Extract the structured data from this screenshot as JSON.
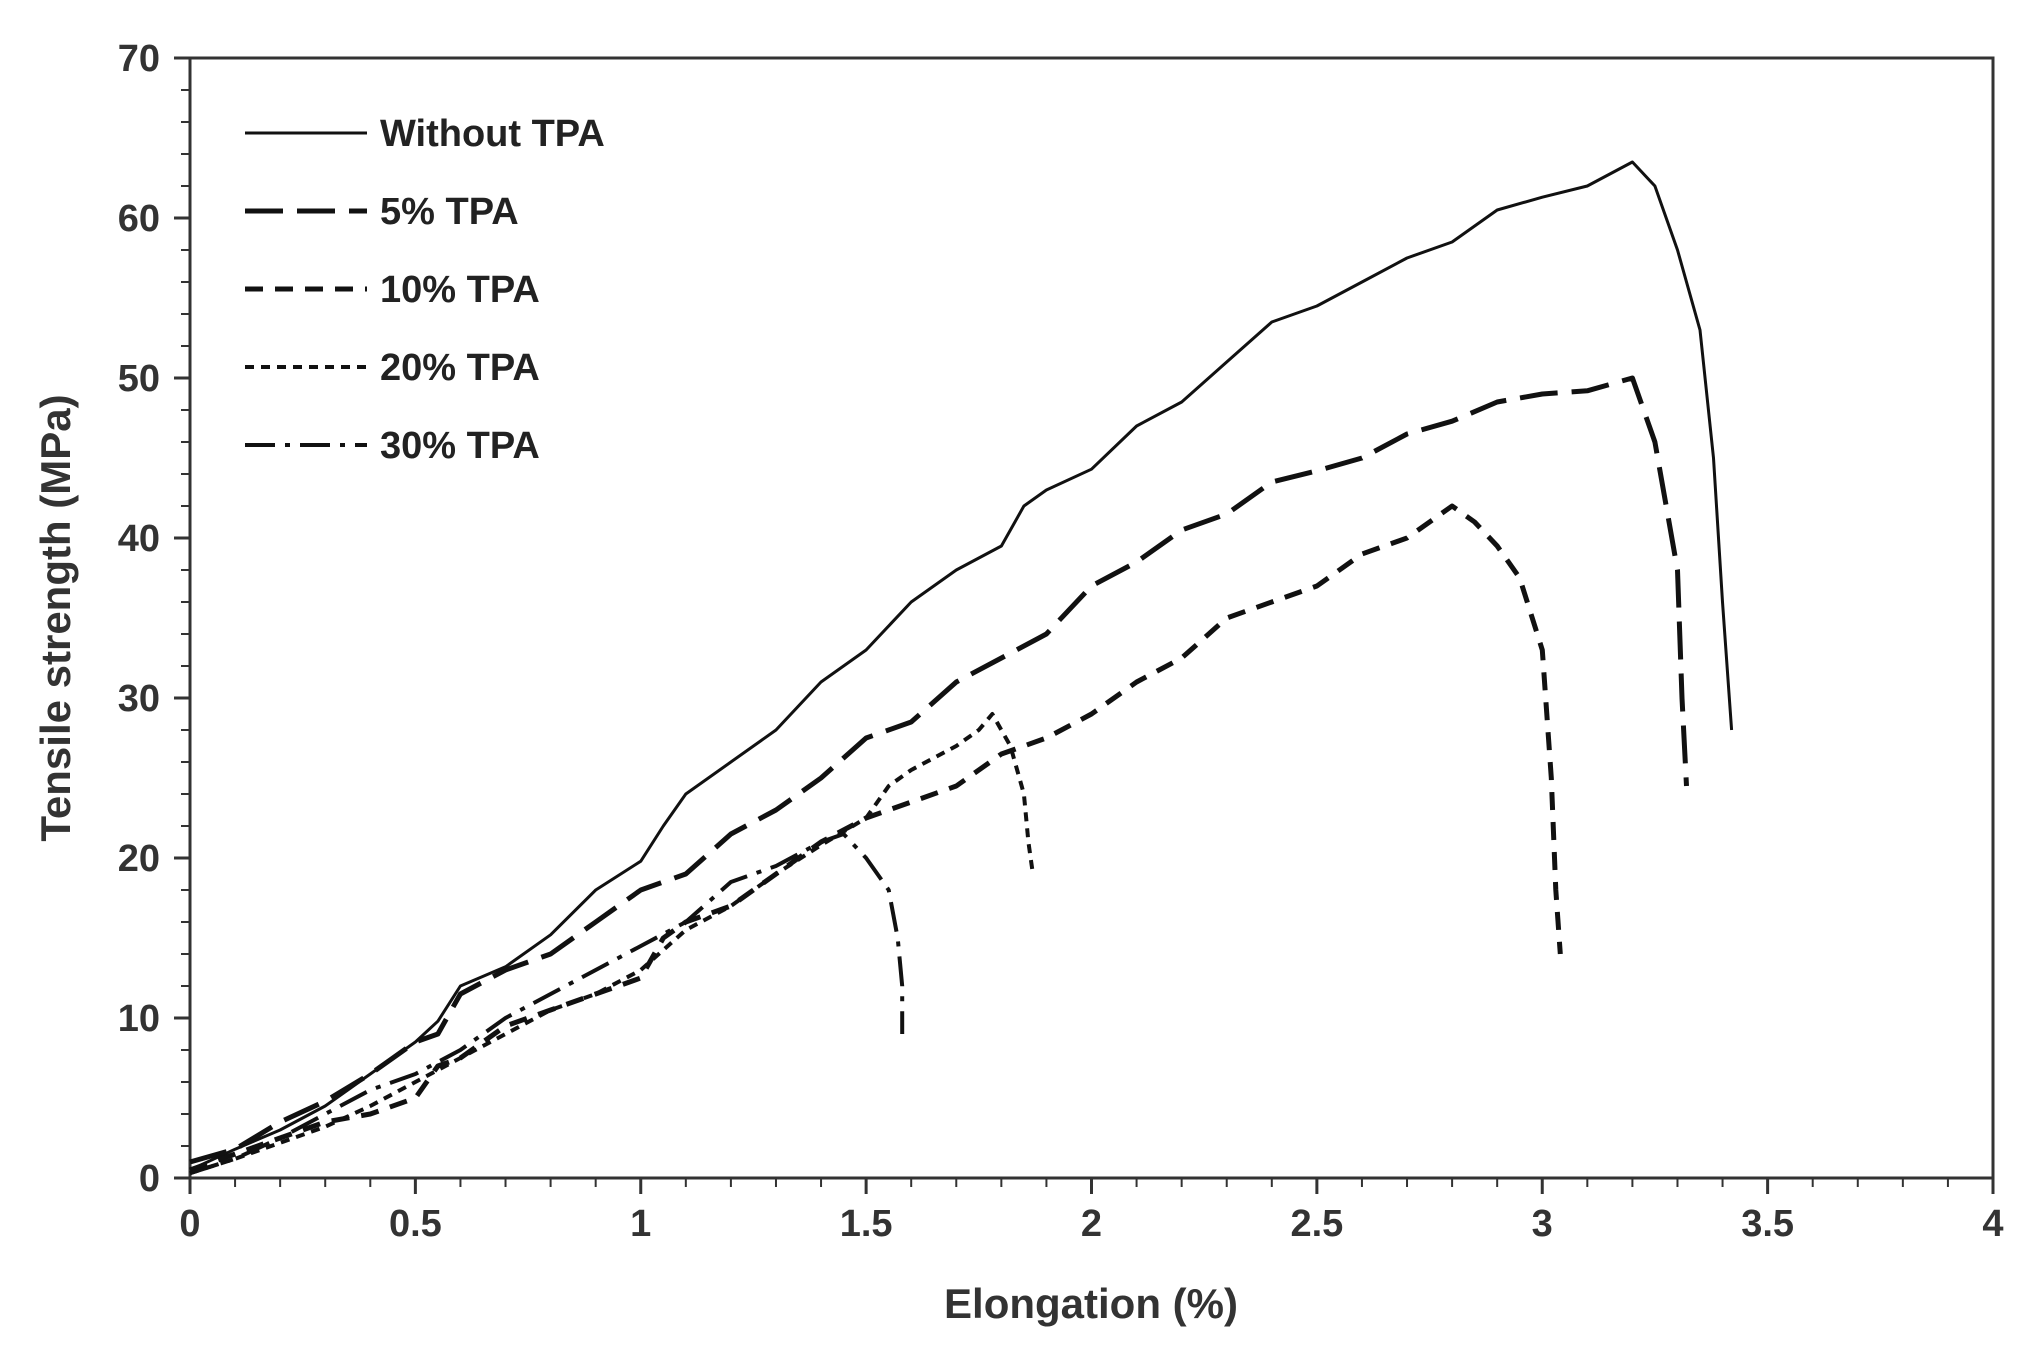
{
  "chart_data": {
    "type": "line",
    "title": "",
    "xlabel": "Elongation (%)",
    "ylabel": "Tensile strength (MPa)",
    "xlim": [
      0,
      4
    ],
    "ylim": [
      0,
      70
    ],
    "x_ticks": [
      0,
      0.5,
      1,
      1.5,
      2,
      2.5,
      3,
      3.5,
      4
    ],
    "x_tick_labels": [
      "0",
      "0.5",
      "1",
      "1.5",
      "2",
      "2.5",
      "3",
      "3.5",
      "4"
    ],
    "y_ticks": [
      0,
      10,
      20,
      30,
      40,
      50,
      60,
      70
    ],
    "y_tick_labels": [
      "0",
      "10",
      "20",
      "30",
      "40",
      "50",
      "60",
      "70"
    ],
    "grid": false,
    "legend_position": "top-left",
    "series": [
      {
        "name": "Without TPA",
        "style": "solid",
        "color": "#111111",
        "points": [
          [
            0,
            0.5
          ],
          [
            0.1,
            1.8
          ],
          [
            0.2,
            3
          ],
          [
            0.3,
            4.5
          ],
          [
            0.4,
            6.5
          ],
          [
            0.5,
            8.5
          ],
          [
            0.55,
            9.8
          ],
          [
            0.6,
            12
          ],
          [
            0.7,
            13.2
          ],
          [
            0.8,
            15.2
          ],
          [
            0.9,
            18
          ],
          [
            1.0,
            19.8
          ],
          [
            1.05,
            22
          ],
          [
            1.1,
            24
          ],
          [
            1.2,
            26
          ],
          [
            1.3,
            28
          ],
          [
            1.4,
            31
          ],
          [
            1.5,
            33
          ],
          [
            1.6,
            36
          ],
          [
            1.7,
            38
          ],
          [
            1.8,
            39.5
          ],
          [
            1.85,
            42
          ],
          [
            1.9,
            43
          ],
          [
            2.0,
            44.3
          ],
          [
            2.1,
            47
          ],
          [
            2.2,
            48.5
          ],
          [
            2.3,
            51
          ],
          [
            2.4,
            53.5
          ],
          [
            2.5,
            54.5
          ],
          [
            2.6,
            56
          ],
          [
            2.7,
            57.5
          ],
          [
            2.8,
            58.5
          ],
          [
            2.9,
            60.5
          ],
          [
            3.0,
            61.3
          ],
          [
            3.1,
            62
          ],
          [
            3.2,
            63.5
          ],
          [
            3.25,
            62
          ],
          [
            3.3,
            58
          ],
          [
            3.35,
            53
          ],
          [
            3.38,
            45
          ],
          [
            3.4,
            36
          ],
          [
            3.42,
            28
          ]
        ]
      },
      {
        "name": "5% TPA",
        "style": "long-dash",
        "color": "#111111",
        "points": [
          [
            0,
            1
          ],
          [
            0.1,
            1.8
          ],
          [
            0.2,
            3.5
          ],
          [
            0.3,
            4.8
          ],
          [
            0.4,
            6.5
          ],
          [
            0.5,
            8.5
          ],
          [
            0.55,
            9
          ],
          [
            0.6,
            11.5
          ],
          [
            0.7,
            13
          ],
          [
            0.8,
            14
          ],
          [
            0.9,
            16
          ],
          [
            1.0,
            18
          ],
          [
            1.1,
            19
          ],
          [
            1.2,
            21.5
          ],
          [
            1.3,
            23
          ],
          [
            1.4,
            25
          ],
          [
            1.5,
            27.5
          ],
          [
            1.6,
            28.5
          ],
          [
            1.7,
            31
          ],
          [
            1.8,
            32.5
          ],
          [
            1.9,
            34
          ],
          [
            2.0,
            37
          ],
          [
            2.1,
            38.5
          ],
          [
            2.2,
            40.5
          ],
          [
            2.3,
            41.5
          ],
          [
            2.4,
            43.5
          ],
          [
            2.5,
            44.2
          ],
          [
            2.6,
            45
          ],
          [
            2.7,
            46.5
          ],
          [
            2.8,
            47.3
          ],
          [
            2.9,
            48.5
          ],
          [
            3.0,
            49
          ],
          [
            3.1,
            49.2
          ],
          [
            3.2,
            50
          ],
          [
            3.25,
            46
          ],
          [
            3.3,
            38
          ],
          [
            3.31,
            30
          ],
          [
            3.32,
            24.5
          ]
        ]
      },
      {
        "name": "10% TPA",
        "style": "dash",
        "color": "#111111",
        "points": [
          [
            0,
            0.5
          ],
          [
            0.1,
            1.5
          ],
          [
            0.2,
            2.5
          ],
          [
            0.3,
            3.5
          ],
          [
            0.4,
            4
          ],
          [
            0.5,
            5
          ],
          [
            0.55,
            7
          ],
          [
            0.6,
            7.5
          ],
          [
            0.7,
            9.5
          ],
          [
            0.8,
            10.5
          ],
          [
            0.9,
            11.5
          ],
          [
            1.0,
            12.5
          ],
          [
            1.05,
            15
          ],
          [
            1.1,
            16
          ],
          [
            1.2,
            17
          ],
          [
            1.3,
            19
          ],
          [
            1.4,
            21
          ],
          [
            1.5,
            22.5
          ],
          [
            1.6,
            23.5
          ],
          [
            1.7,
            24.5
          ],
          [
            1.8,
            26.5
          ],
          [
            1.9,
            27.5
          ],
          [
            2.0,
            29
          ],
          [
            2.1,
            31
          ],
          [
            2.2,
            32.5
          ],
          [
            2.3,
            35
          ],
          [
            2.4,
            36
          ],
          [
            2.5,
            37
          ],
          [
            2.6,
            39
          ],
          [
            2.7,
            40
          ],
          [
            2.8,
            42
          ],
          [
            2.85,
            41
          ],
          [
            2.9,
            39.5
          ],
          [
            2.95,
            37.5
          ],
          [
            3.0,
            33
          ],
          [
            3.02,
            25
          ],
          [
            3.03,
            18
          ],
          [
            3.04,
            14
          ]
        ]
      },
      {
        "name": "20% TPA",
        "style": "short-dash",
        "color": "#111111",
        "points": [
          [
            0,
            0.3
          ],
          [
            0.1,
            1.2
          ],
          [
            0.2,
            2.2
          ],
          [
            0.3,
            3.2
          ],
          [
            0.4,
            4.5
          ],
          [
            0.5,
            6
          ],
          [
            0.6,
            7.5
          ],
          [
            0.7,
            9
          ],
          [
            0.8,
            10.5
          ],
          [
            0.9,
            11.5
          ],
          [
            1.0,
            13
          ],
          [
            1.1,
            15.5
          ],
          [
            1.2,
            17
          ],
          [
            1.3,
            19
          ],
          [
            1.4,
            20.8
          ],
          [
            1.5,
            22.5
          ],
          [
            1.55,
            24.5
          ],
          [
            1.6,
            25.5
          ],
          [
            1.7,
            27
          ],
          [
            1.75,
            28
          ],
          [
            1.78,
            29
          ],
          [
            1.82,
            27
          ],
          [
            1.85,
            24
          ],
          [
            1.86,
            21
          ],
          [
            1.87,
            19
          ]
        ]
      },
      {
        "name": "30% TPA",
        "style": "dash-dot",
        "color": "#111111",
        "points": [
          [
            0,
            0.3
          ],
          [
            0.1,
            1.2
          ],
          [
            0.2,
            2.5
          ],
          [
            0.3,
            4
          ],
          [
            0.4,
            5.5
          ],
          [
            0.5,
            6.5
          ],
          [
            0.6,
            8
          ],
          [
            0.7,
            10
          ],
          [
            0.8,
            11.5
          ],
          [
            0.9,
            13
          ],
          [
            1.0,
            14.5
          ],
          [
            1.1,
            16
          ],
          [
            1.2,
            18.5
          ],
          [
            1.3,
            19.5
          ],
          [
            1.4,
            21
          ],
          [
            1.45,
            21.5
          ],
          [
            1.5,
            20
          ],
          [
            1.55,
            18
          ],
          [
            1.57,
            15
          ],
          [
            1.58,
            12
          ],
          [
            1.58,
            9
          ]
        ]
      }
    ]
  }
}
